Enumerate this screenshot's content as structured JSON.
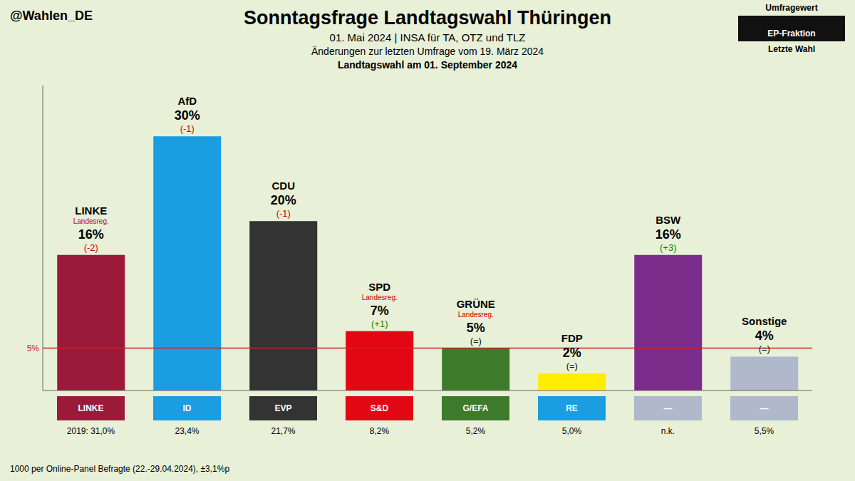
{
  "chart_data": {
    "type": "bar",
    "title": "Sonntagsfrage Landtagswahl Thüringen",
    "subtitle": [
      "01. Mai 2024 | INSA für TA, OTZ und TLZ",
      "Änderungen zur letzten Umfrage vom 19. März 2024",
      "Landtagswahl am 01. September 2024"
    ],
    "handle": "@Wahlen_DE",
    "footer": "1000 per Online-Panel Befragte (22.-29.04.2024), ±3,1%p",
    "categories": [
      "LINKE",
      "AfD",
      "CDU",
      "SPD",
      "GRÜNE",
      "FDP",
      "BSW",
      "Sonstige"
    ],
    "values": [
      16,
      30,
      20,
      7,
      5,
      2,
      16,
      4
    ],
    "value_labels": [
      "16%",
      "30%",
      "20%",
      "7%",
      "5%",
      "2%",
      "16%",
      "4%"
    ],
    "data_labels": true,
    "colors": [
      "#9b1a3a",
      "#1b9de2",
      "#333333",
      "#e30613",
      "#3d7a2b",
      "#ffed00",
      "#7b2d8b",
      "#b0b8cc"
    ],
    "changes": [
      "(-2)",
      "(-1)",
      "(-1)",
      "(+1)",
      "(=)",
      "(=)",
      "(+3)",
      "(=)"
    ],
    "change_colors": [
      "#cc0000",
      "#cc0000",
      "#cc0000",
      "#008800",
      "#111111",
      "#111111",
      "#008800",
      "#111111"
    ],
    "government_labels": [
      "Landesreg.",
      null,
      null,
      "Landesreg.",
      "Landesreg.",
      null,
      null,
      null
    ],
    "government_label_color": "#cc0000",
    "ep_labels": [
      "LINKE",
      "ID",
      "EVP",
      "S&D",
      "G/EFA",
      "RE",
      "—",
      "—"
    ],
    "ep_colors": [
      "#9b1a3a",
      "#1b9de2",
      "#333333",
      "#e30613",
      "#3d7a2b",
      "#1b9de2",
      "#b0b8cc",
      "#b0b8cc"
    ],
    "ep_text_color": "#ffffff",
    "last_values": [
      "2019: 31,0%",
      "23,4%",
      "21,7%",
      "8,2%",
      "5,2%",
      "5,0%",
      "n.k.",
      "5,5%"
    ],
    "key": [
      "Umfragewert",
      "EP-Fraktion",
      "Letzte Wahl"
    ],
    "key_box_color": "#111111",
    "reference_lines": [
      {
        "value": 5,
        "label": "5%",
        "color": "#cc2222"
      }
    ],
    "ylim": [
      0,
      36
    ],
    "tick_labels": false,
    "grid": false,
    "background": "#e8f0d8"
  }
}
